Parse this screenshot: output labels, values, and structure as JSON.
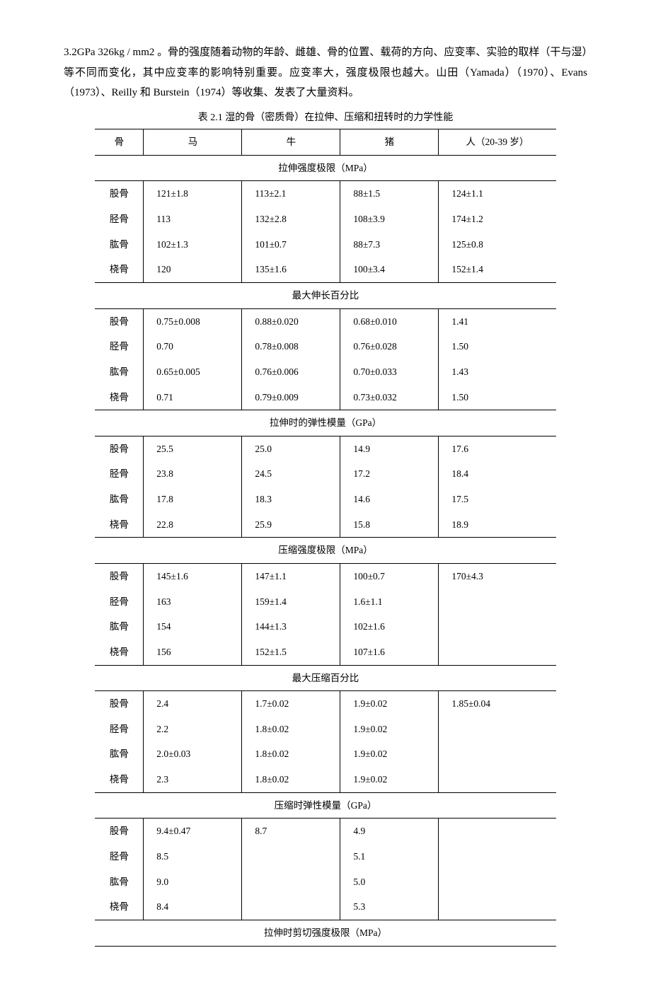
{
  "paragraph": "3.2GPa 326kg / mm2 。骨的强度随着动物的年龄、雌雄、骨的位置、载荷的方向、应变率、实验的取样（干与湿）等不同而变化，其中应变率的影响特别重要。应变率大，强度极限也越大。山田（Yamada）（1970）、Evans（1973）、Reilly 和 Burstein（1974）等收集、发表了大量资料。",
  "caption": "表 2.1  湿的骨（密质骨）在拉伸、压缩和扭转时的力学性能",
  "columns": [
    "骨",
    "马",
    "牛",
    "猪",
    "人（20-39 岁）"
  ],
  "sections": [
    {
      "title": "拉伸强度极限（MPa）",
      "rows": [
        [
          "股骨",
          "121±1.8",
          "113±2.1",
          "88±1.5",
          "124±1.1"
        ],
        [
          "胫骨",
          "113",
          "132±2.8",
          "108±3.9",
          "174±1.2"
        ],
        [
          "肱骨",
          "102±1.3",
          "101±0.7",
          "88±7.3",
          "125±0.8"
        ],
        [
          "桡骨",
          "120",
          "135±1.6",
          "100±3.4",
          "152±1.4"
        ]
      ]
    },
    {
      "title": "最大伸长百分比",
      "rows": [
        [
          "股骨",
          "0.75±0.008",
          "0.88±0.020",
          "0.68±0.010",
          "1.41"
        ],
        [
          "胫骨",
          "0.70",
          "0.78±0.008",
          "0.76±0.028",
          "1.50"
        ],
        [
          "肱骨",
          "0.65±0.005",
          "0.76±0.006",
          "0.70±0.033",
          "1.43"
        ],
        [
          "桡骨",
          "0.71",
          "0.79±0.009",
          "0.73±0.032",
          "1.50"
        ]
      ]
    },
    {
      "title": "拉伸时的弹性模量（GPa）",
      "rows": [
        [
          "股骨",
          "25.5",
          "25.0",
          "14.9",
          "17.6"
        ],
        [
          "胫骨",
          "23.8",
          "24.5",
          "17.2",
          "18.4"
        ],
        [
          "肱骨",
          "17.8",
          "18.3",
          "14.6",
          "17.5"
        ],
        [
          "桡骨",
          "22.8",
          "25.9",
          "15.8",
          "18.9"
        ]
      ]
    },
    {
      "title": "压缩强度极限（MPa）",
      "rows": [
        [
          "股骨",
          "145±1.6",
          "147±1.1",
          "100±0.7",
          "170±4.3"
        ],
        [
          "胫骨",
          "163",
          "159±1.4",
          "1.6±1.1",
          ""
        ],
        [
          "肱骨",
          "154",
          "144±1.3",
          "102±1.6",
          ""
        ],
        [
          "桡骨",
          "156",
          "152±1.5",
          "107±1.6",
          ""
        ]
      ]
    },
    {
      "title": "最大压缩百分比",
      "rows": [
        [
          "股骨",
          "2.4",
          "1.7±0.02",
          "1.9±0.02",
          "1.85±0.04"
        ],
        [
          "胫骨",
          "2.2",
          "1.8±0.02",
          "1.9±0.02",
          ""
        ],
        [
          "肱骨",
          "2.0±0.03",
          "1.8±0.02",
          "1.9±0.02",
          ""
        ],
        [
          "桡骨",
          "2.3",
          "1.8±0.02",
          "1.9±0.02",
          ""
        ]
      ]
    },
    {
      "title": "压缩时弹性模量（GPa）",
      "rows": [
        [
          "股骨",
          "9.4±0.47",
          "8.7",
          "4.9",
          ""
        ],
        [
          "胫骨",
          "8.5",
          "",
          "5.1",
          ""
        ],
        [
          "肱骨",
          "9.0",
          "",
          "5.0",
          ""
        ],
        [
          "桡骨",
          "8.4",
          "",
          "5.3",
          ""
        ]
      ]
    },
    {
      "title": "拉伸时剪切强度极限（MPa）",
      "rows": []
    }
  ]
}
